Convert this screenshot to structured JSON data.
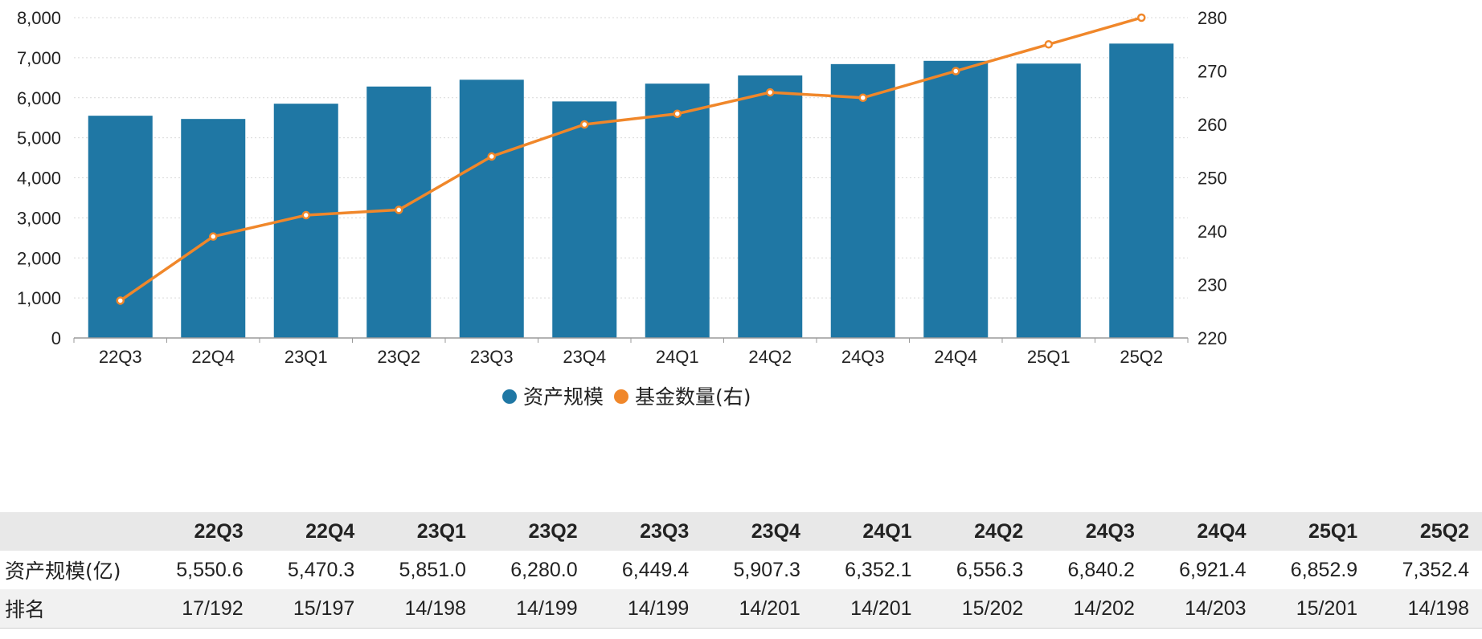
{
  "chart_data": {
    "type": "bar",
    "categories": [
      "22Q3",
      "22Q4",
      "23Q1",
      "23Q2",
      "23Q3",
      "23Q4",
      "24Q1",
      "24Q2",
      "24Q3",
      "24Q4",
      "25Q1",
      "25Q2"
    ],
    "series": [
      {
        "name": "资产规模",
        "type": "bar",
        "axis": "left",
        "color": "#1f77a4",
        "values": [
          5550.6,
          5470.3,
          5851.0,
          6280.0,
          6449.4,
          5907.3,
          6352.1,
          6556.3,
          6840.2,
          6921.4,
          6852.9,
          7352.4
        ]
      },
      {
        "name": "基金数量(右)",
        "type": "line",
        "axis": "right",
        "color": "#f0872a",
        "values": [
          227,
          239,
          243,
          244,
          254,
          260,
          262,
          266,
          265,
          270,
          275,
          280
        ]
      }
    ],
    "y_left": {
      "min": 0,
      "max": 8000,
      "ticks": [
        "0",
        "1,000",
        "2,000",
        "3,000",
        "4,000",
        "5,000",
        "6,000",
        "7,000",
        "8,000"
      ]
    },
    "y_right": {
      "min": 220,
      "max": 280,
      "ticks": [
        "220",
        "230",
        "240",
        "250",
        "260",
        "270",
        "280"
      ]
    },
    "grid": true,
    "legend_position": "bottom-center"
  },
  "table": {
    "headers": [
      "",
      "22Q3",
      "22Q4",
      "23Q1",
      "23Q2",
      "23Q3",
      "23Q4",
      "24Q1",
      "24Q2",
      "24Q3",
      "24Q4",
      "25Q1",
      "25Q2"
    ],
    "rows": [
      {
        "label": "资产规模(亿)",
        "cells": [
          "5,550.6",
          "5,470.3",
          "5,851.0",
          "6,280.0",
          "6,449.4",
          "5,907.3",
          "6,352.1",
          "6,556.3",
          "6,840.2",
          "6,921.4",
          "6,852.9",
          "7,352.4"
        ]
      },
      {
        "label": "排名",
        "cells": [
          "17/192",
          "15/197",
          "14/198",
          "14/199",
          "14/199",
          "14/201",
          "14/201",
          "15/202",
          "14/202",
          "14/203",
          "15/201",
          "14/198"
        ]
      }
    ]
  }
}
